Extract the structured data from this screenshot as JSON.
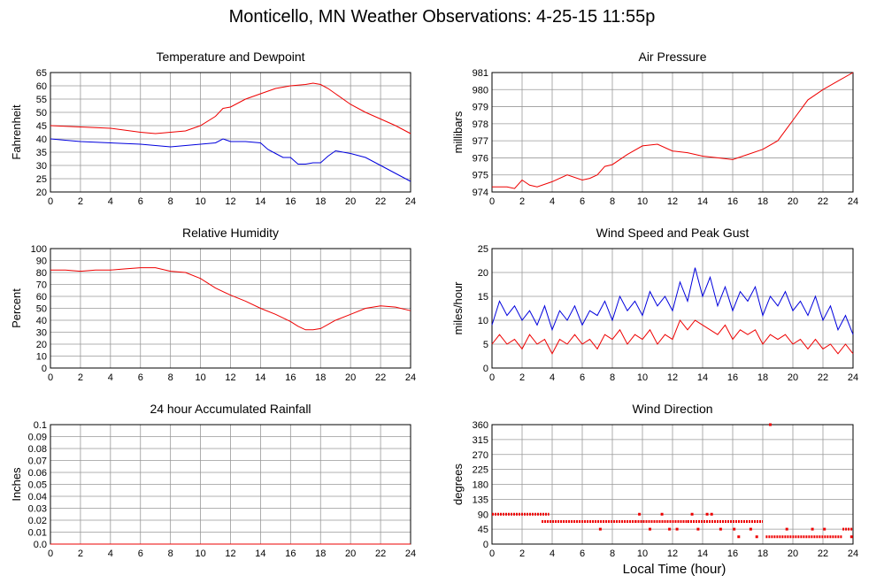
{
  "title": "Monticello, MN Weather Observations: 4-25-15 11:55p",
  "bottom_xlabel": "Local Time (hour)",
  "colors": {
    "red": "#ee0000",
    "blue": "#0000dd",
    "grid": "#999999"
  },
  "chart_data": [
    {
      "id": "temp",
      "type": "line",
      "title": "Temperature and Dewpoint",
      "xlabel": "",
      "ylabel": "Fahrenheit",
      "xlim": [
        0,
        24
      ],
      "ylim": [
        20,
        65
      ],
      "xticks": [
        0,
        2,
        4,
        6,
        8,
        10,
        12,
        14,
        16,
        18,
        20,
        22,
        24
      ],
      "yticks": [
        20,
        25,
        30,
        35,
        40,
        45,
        50,
        55,
        60,
        65
      ],
      "series": [
        {
          "color": "red",
          "x": [
            0,
            2,
            4,
            6,
            7,
            8,
            9,
            10,
            11,
            11.5,
            12,
            13,
            14,
            15,
            16,
            17,
            17.5,
            18,
            18.5,
            19,
            20,
            21,
            22,
            23,
            24
          ],
          "y": [
            45,
            44.5,
            44,
            42.5,
            42,
            42.5,
            43,
            45,
            48.5,
            51.5,
            52,
            55,
            57,
            59,
            60,
            60.5,
            61,
            60.5,
            59,
            57,
            53,
            50,
            47.5,
            45,
            42
          ]
        },
        {
          "color": "blue",
          "x": [
            0,
            2,
            4,
            6,
            8,
            10,
            11,
            11.5,
            12,
            13,
            14,
            14.5,
            15,
            15.5,
            16,
            16.5,
            17,
            17.5,
            18,
            18.5,
            19,
            19.5,
            20,
            21,
            22,
            23,
            24
          ],
          "y": [
            40,
            39,
            38.5,
            38,
            37,
            38,
            38.5,
            40,
            39,
            39,
            38.5,
            36,
            34.5,
            33,
            33,
            30.5,
            30.5,
            31,
            31,
            33.5,
            35.5,
            35,
            34.5,
            33,
            30,
            27,
            24
          ]
        }
      ]
    },
    {
      "id": "pressure",
      "type": "line",
      "title": "Air Pressure",
      "xlabel": "",
      "ylabel": "millibars",
      "xlim": [
        0,
        24
      ],
      "ylim": [
        974,
        981
      ],
      "xticks": [
        0,
        2,
        4,
        6,
        8,
        10,
        12,
        14,
        16,
        18,
        20,
        22,
        24
      ],
      "yticks": [
        974,
        975,
        976,
        977,
        978,
        979,
        980,
        981
      ],
      "series": [
        {
          "color": "red",
          "x": [
            0,
            1,
            1.5,
            2,
            2.5,
            3,
            4,
            5,
            6,
            6.5,
            7,
            7.5,
            8,
            9,
            10,
            11,
            12,
            13,
            14,
            15,
            16,
            17,
            18,
            19,
            20,
            21,
            22,
            23,
            24
          ],
          "y": [
            974.3,
            974.3,
            974.2,
            974.7,
            974.4,
            974.3,
            974.6,
            975,
            974.7,
            974.8,
            975,
            975.5,
            975.6,
            976.2,
            976.7,
            976.8,
            976.4,
            976.3,
            976.1,
            976,
            975.9,
            976.2,
            976.5,
            977,
            978.2,
            979.4,
            980,
            980.5,
            981
          ]
        }
      ]
    },
    {
      "id": "humidity",
      "type": "line",
      "title": "Relative Humidity",
      "xlabel": "",
      "ylabel": "Percent",
      "xlim": [
        0,
        24
      ],
      "ylim": [
        0,
        100
      ],
      "xticks": [
        0,
        2,
        4,
        6,
        8,
        10,
        12,
        14,
        16,
        18,
        20,
        22,
        24
      ],
      "yticks": [
        0,
        10,
        20,
        30,
        40,
        50,
        60,
        70,
        80,
        90,
        100
      ],
      "series": [
        {
          "color": "red",
          "x": [
            0,
            1,
            2,
            3,
            4,
            5,
            6,
            7,
            8,
            9,
            10,
            11,
            12,
            13,
            14,
            15,
            16,
            16.5,
            17,
            17.5,
            18,
            19,
            20,
            21,
            22,
            23,
            24
          ],
          "y": [
            82,
            82,
            81,
            82,
            82,
            83,
            84,
            84,
            81,
            80,
            75,
            67,
            61,
            56,
            50,
            45,
            39,
            35,
            32,
            32,
            33,
            40,
            45,
            50,
            52,
            51,
            48
          ]
        }
      ]
    },
    {
      "id": "wind",
      "type": "line",
      "title": "Wind Speed and Peak Gust",
      "xlabel": "",
      "ylabel": "miles/hour",
      "xlim": [
        0,
        24
      ],
      "ylim": [
        0,
        25
      ],
      "xticks": [
        0,
        2,
        4,
        6,
        8,
        10,
        12,
        14,
        16,
        18,
        20,
        22,
        24
      ],
      "yticks": [
        0,
        5,
        10,
        15,
        20,
        25
      ],
      "series": [
        {
          "color": "blue",
          "x": [
            0,
            0.5,
            1,
            1.5,
            2,
            2.5,
            3,
            3.5,
            4,
            4.5,
            5,
            5.5,
            6,
            6.5,
            7,
            7.5,
            8,
            8.5,
            9,
            9.5,
            10,
            10.5,
            11,
            11.5,
            12,
            12.5,
            13,
            13.5,
            14,
            14.5,
            15,
            15.5,
            16,
            16.5,
            17,
            17.5,
            18,
            18.5,
            19,
            19.5,
            20,
            20.5,
            21,
            21.5,
            22,
            22.5,
            23,
            23.5,
            24
          ],
          "y": [
            9,
            14,
            11,
            13,
            10,
            12,
            9,
            13,
            8,
            12,
            10,
            13,
            9,
            12,
            11,
            14,
            10,
            15,
            12,
            14,
            11,
            16,
            13,
            15,
            12,
            18,
            14,
            21,
            15,
            19,
            13,
            17,
            12,
            16,
            14,
            17,
            11,
            15,
            13,
            16,
            12,
            14,
            11,
            15,
            10,
            13,
            8,
            11,
            7
          ]
        },
        {
          "color": "red",
          "x": [
            0,
            0.5,
            1,
            1.5,
            2,
            2.5,
            3,
            3.5,
            4,
            4.5,
            5,
            5.5,
            6,
            6.5,
            7,
            7.5,
            8,
            8.5,
            9,
            9.5,
            10,
            10.5,
            11,
            11.5,
            12,
            12.5,
            13,
            13.5,
            14,
            14.5,
            15,
            15.5,
            16,
            16.5,
            17,
            17.5,
            18,
            18.5,
            19,
            19.5,
            20,
            20.5,
            21,
            21.5,
            22,
            22.5,
            23,
            23.5,
            24
          ],
          "y": [
            5,
            7,
            5,
            6,
            4,
            7,
            5,
            6,
            3,
            6,
            5,
            7,
            5,
            6,
            4,
            7,
            6,
            8,
            5,
            7,
            6,
            8,
            5,
            7,
            6,
            10,
            8,
            10,
            9,
            8,
            7,
            9,
            6,
            8,
            7,
            8,
            5,
            7,
            6,
            7,
            5,
            6,
            4,
            6,
            4,
            5,
            3,
            5,
            3
          ]
        }
      ]
    },
    {
      "id": "rain",
      "type": "line",
      "title": "24 hour Accumulated Rainfall",
      "xlabel": "",
      "ylabel": "Inches",
      "xlim": [
        0,
        24
      ],
      "ylim": [
        0,
        0.1
      ],
      "xticks": [
        0,
        2,
        4,
        6,
        8,
        10,
        12,
        14,
        16,
        18,
        20,
        22,
        24
      ],
      "yticks": [
        "0.0",
        "0.01",
        "0.02",
        "0.03",
        "0.04",
        "0.05",
        "0.06",
        "0.07",
        "0.08",
        "0.09",
        "0.1"
      ],
      "series": [
        {
          "color": "red",
          "x": [
            0,
            24
          ],
          "y": [
            0,
            0
          ]
        }
      ]
    },
    {
      "id": "direction",
      "type": "scatter",
      "title": "Wind Direction",
      "xlabel": "",
      "ylabel": "degrees",
      "xlim": [
        0,
        24
      ],
      "ylim": [
        0,
        360
      ],
      "xticks": [
        0,
        2,
        4,
        6,
        8,
        10,
        12,
        14,
        16,
        18,
        20,
        22,
        24
      ],
      "yticks": [
        0,
        45,
        90,
        135,
        180,
        225,
        270,
        315,
        360
      ],
      "series": [
        {
          "color": "red",
          "segments": [
            {
              "x0": 0,
              "x1": 3.8,
              "y": 90
            },
            {
              "x0": 3.3,
              "x1": 9.5,
              "y": 68
            },
            {
              "x0": 9.5,
              "x1": 13,
              "y": 68
            },
            {
              "x0": 13,
              "x1": 18,
              "y": 68
            },
            {
              "x0": 18.2,
              "x1": 23.3,
              "y": 22
            },
            {
              "x0": 23.3,
              "x1": 24,
              "y": 45
            }
          ],
          "points": [
            {
              "x": 7.2,
              "y": 45
            },
            {
              "x": 9.8,
              "y": 90
            },
            {
              "x": 10.5,
              "y": 45
            },
            {
              "x": 11.3,
              "y": 90
            },
            {
              "x": 11.8,
              "y": 45
            },
            {
              "x": 12.3,
              "y": 45
            },
            {
              "x": 13.3,
              "y": 90
            },
            {
              "x": 13.7,
              "y": 45
            },
            {
              "x": 14.3,
              "y": 90
            },
            {
              "x": 14.6,
              "y": 90
            },
            {
              "x": 15.2,
              "y": 45
            },
            {
              "x": 16.1,
              "y": 45
            },
            {
              "x": 16.4,
              "y": 22
            },
            {
              "x": 17.2,
              "y": 45
            },
            {
              "x": 17.6,
              "y": 22
            },
            {
              "x": 18.5,
              "y": 360
            },
            {
              "x": 19.6,
              "y": 45
            },
            {
              "x": 21.3,
              "y": 45
            },
            {
              "x": 22.1,
              "y": 45
            },
            {
              "x": 23.9,
              "y": 22
            }
          ]
        }
      ]
    }
  ]
}
